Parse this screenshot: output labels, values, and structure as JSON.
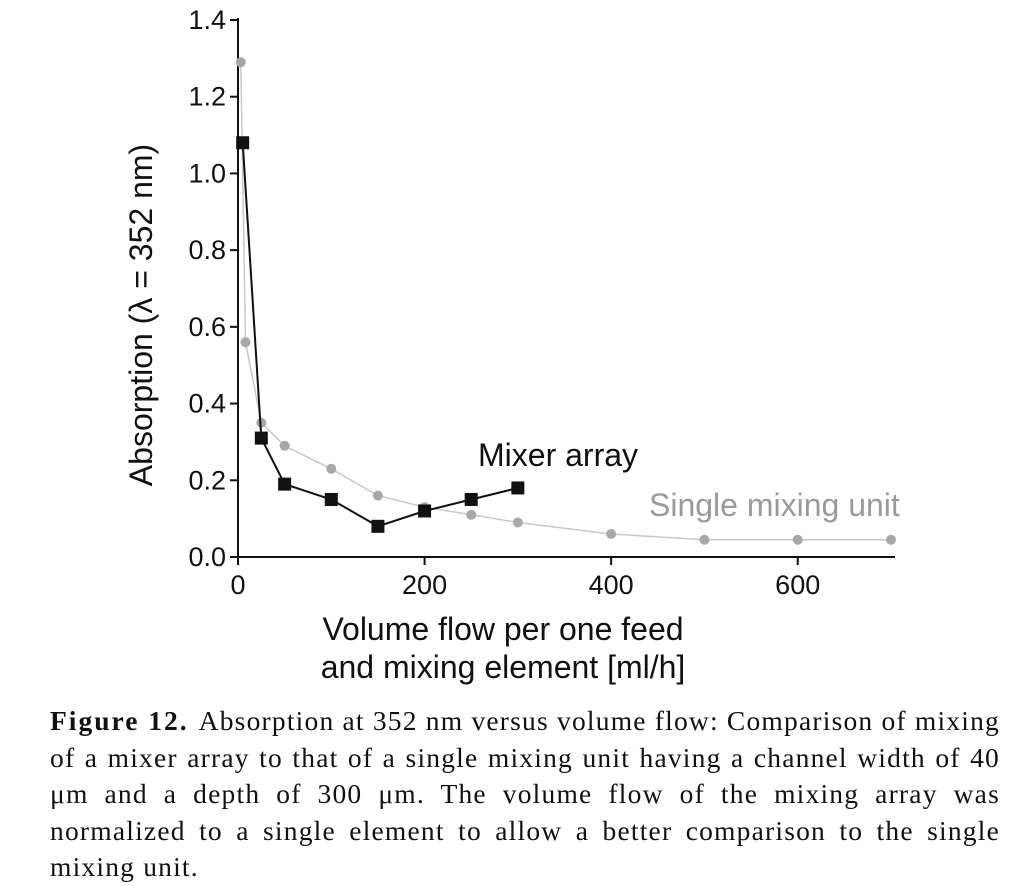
{
  "chart_data": {
    "type": "line",
    "title": "",
    "xlabel": "Volume flow per one feed and mixing element [ml/h]",
    "xlabel_lines": [
      "Volume flow per one feed",
      "and mixing element [ml/h]"
    ],
    "ylabel": "Absorption (λ = 352 nm)",
    "xlim": [
      0,
      700
    ],
    "ylim": [
      0,
      1.4
    ],
    "xticks": [
      0,
      200,
      400,
      600
    ],
    "xtick_labels": [
      "0",
      "200",
      "400",
      "600"
    ],
    "yticks": [
      0.0,
      0.2,
      0.4,
      0.6,
      0.8,
      1.0,
      1.2,
      1.4
    ],
    "ytick_labels": [
      "0.0",
      "0.2",
      "0.4",
      "0.6",
      "0.8",
      "1.0",
      "1.2",
      "1.4"
    ],
    "grid": false,
    "series": [
      {
        "name": "Single mixing unit",
        "marker": "circle",
        "color": "#a8a8a8",
        "line_color": "#c8c8c8",
        "x": [
          3,
          8,
          25,
          50,
          100,
          150,
          200,
          250,
          300,
          400,
          500,
          600,
          700
        ],
        "y": [
          1.29,
          0.56,
          0.35,
          0.29,
          0.23,
          0.16,
          0.13,
          0.11,
          0.09,
          0.06,
          0.045,
          0.045,
          0.045
        ]
      },
      {
        "name": "Mixer array",
        "marker": "square",
        "color": "#111111",
        "line_color": "#111111",
        "x": [
          5,
          25,
          50,
          100,
          150,
          200,
          250,
          300
        ],
        "y": [
          1.08,
          0.31,
          0.19,
          0.15,
          0.08,
          0.12,
          0.15,
          0.18
        ]
      }
    ]
  },
  "caption": {
    "label": "Figure 12.",
    "text": "Absorption at 352 nm versus volume flow: Comparison of mixing of a mixer array to that of a single mixing unit having a channel width of 40 μm and a depth of 300 μm. The volume flow of the mixing array was normalized to a single element to allow a better comparison to the single mixing unit."
  }
}
